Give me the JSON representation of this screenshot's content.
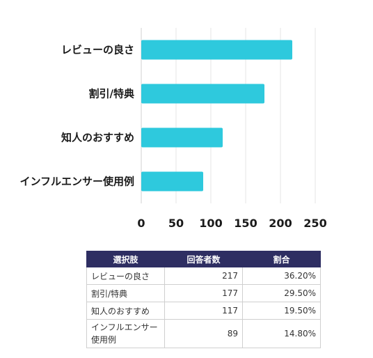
{
  "chart_data": {
    "type": "bar",
    "orientation": "horizontal",
    "categories": [
      "レビューの良さ",
      "割引/特典",
      "知人のおすすめ",
      "インフルエンサー使用例"
    ],
    "values": [
      217,
      177,
      117,
      89
    ],
    "xlim": [
      0,
      250
    ],
    "xticks": [
      0,
      50,
      100,
      150,
      200,
      250
    ],
    "grid": true,
    "bar_color": "#2ec9dd"
  },
  "table": {
    "headers": [
      "選択肢",
      "回答者数",
      "割合"
    ],
    "rows": [
      {
        "choice": "レビューの良さ",
        "count": "217",
        "ratio": "36.20%"
      },
      {
        "choice": "割引/特典",
        "count": "177",
        "ratio": "29.50%"
      },
      {
        "choice": "知人のおすすめ",
        "count": "117",
        "ratio": "19.50%"
      },
      {
        "choice_line1": "インフルエンサー",
        "choice_line2": "使用例",
        "count": "89",
        "ratio": "14.80%"
      }
    ],
    "header_color": "#2e2e62"
  }
}
